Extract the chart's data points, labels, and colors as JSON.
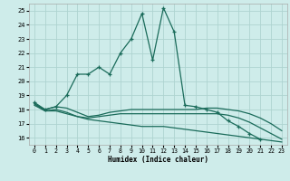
{
  "s0x": [
    0,
    1,
    2,
    3,
    4,
    5,
    6,
    7,
    8,
    9,
    10,
    11,
    12,
    13,
    14,
    15,
    16,
    17,
    18,
    19,
    20,
    21
  ],
  "s0y": [
    18.5,
    18.0,
    18.2,
    19.0,
    20.5,
    20.5,
    21.0,
    20.5,
    22.0,
    23.0,
    24.8,
    21.5,
    25.2,
    23.5,
    18.3,
    18.2,
    18.0,
    17.8,
    17.2,
    16.8,
    16.3,
    15.9
  ],
  "s1x": [
    0,
    1,
    2,
    3,
    4,
    5,
    6,
    7,
    8,
    9,
    10,
    11,
    12,
    13,
    14,
    15,
    16,
    17,
    18,
    19,
    20,
    21,
    22,
    23
  ],
  "s1y": [
    18.4,
    18.0,
    18.2,
    18.1,
    17.8,
    17.5,
    17.6,
    17.8,
    17.9,
    18.0,
    18.0,
    18.0,
    18.0,
    18.0,
    18.0,
    18.0,
    18.1,
    18.1,
    18.0,
    17.9,
    17.7,
    17.4,
    17.0,
    16.5
  ],
  "s2x": [
    0,
    1,
    2,
    3,
    4,
    5,
    6,
    7,
    8,
    9,
    10,
    11,
    12,
    13,
    14,
    15,
    16,
    17,
    18,
    19,
    20,
    21,
    22,
    23
  ],
  "s2y": [
    18.3,
    17.9,
    18.0,
    17.8,
    17.5,
    17.4,
    17.5,
    17.6,
    17.7,
    17.7,
    17.7,
    17.7,
    17.7,
    17.7,
    17.7,
    17.7,
    17.7,
    17.7,
    17.6,
    17.4,
    17.1,
    16.7,
    16.3,
    15.9
  ],
  "s3x": [
    0,
    1,
    2,
    3,
    4,
    5,
    6,
    7,
    8,
    9,
    10,
    11,
    12,
    13,
    14,
    15,
    16,
    17,
    18,
    19,
    20,
    21,
    22,
    23
  ],
  "s3y": [
    18.4,
    17.9,
    17.9,
    17.7,
    17.5,
    17.3,
    17.2,
    17.1,
    17.0,
    16.9,
    16.8,
    16.8,
    16.8,
    16.7,
    16.6,
    16.5,
    16.4,
    16.3,
    16.2,
    16.1,
    16.0,
    15.9,
    15.8,
    15.7
  ],
  "bg_color": "#ceecea",
  "grid_color": "#aed4d0",
  "line_color": "#1a6b5a",
  "xlabel": "Humidex (Indice chaleur)",
  "ylim": [
    15.5,
    25.5
  ],
  "xlim": [
    -0.5,
    23.5
  ],
  "yticks": [
    16,
    17,
    18,
    19,
    20,
    21,
    22,
    23,
    24,
    25
  ],
  "xticks": [
    0,
    1,
    2,
    3,
    4,
    5,
    6,
    7,
    8,
    9,
    10,
    11,
    12,
    13,
    14,
    15,
    16,
    17,
    18,
    19,
    20,
    21,
    22,
    23
  ]
}
